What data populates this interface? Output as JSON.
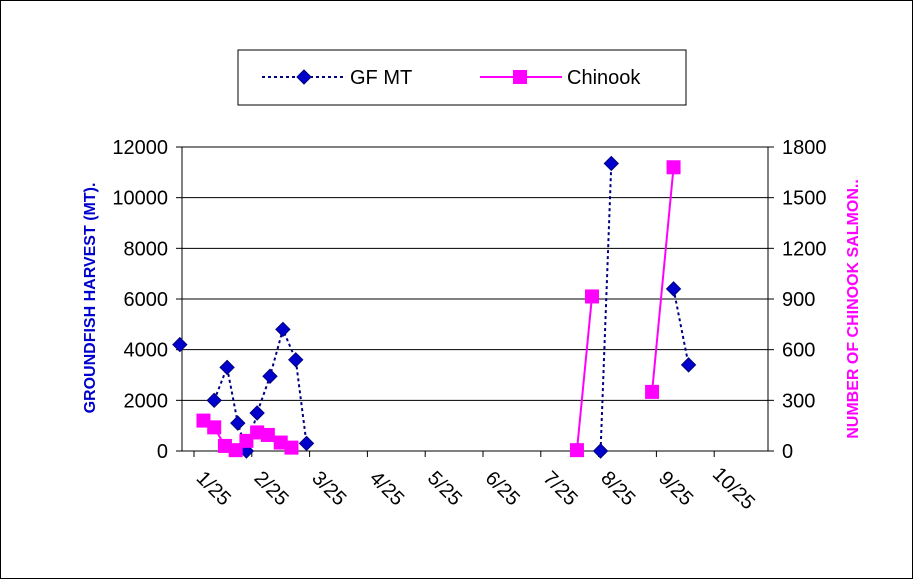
{
  "chart_data": {
    "type": "line",
    "dual_axis": true,
    "x_axis": {
      "tick_labels": [
        "1/25",
        "2/25",
        "3/25",
        "4/25",
        "5/25",
        "6/25",
        "7/25",
        "8/25",
        "9/25",
        "10/25"
      ],
      "range_days": [
        0,
        273
      ]
    },
    "y_left": {
      "label": "GROUNDFISH HARVEST (MT).",
      "ticks": [
        "0",
        "2000",
        "4000",
        "6000",
        "8000",
        "10000",
        "12000"
      ],
      "ylim": [
        0,
        12000
      ],
      "color": "#0000cc"
    },
    "y_right": {
      "label": "NUMBER OF CHINOOK SALMON..",
      "ticks": [
        "0",
        "300",
        "600",
        "900",
        "1200",
        "1500",
        "1800"
      ],
      "ylim": [
        0,
        1800
      ],
      "color": "#ff00ff"
    },
    "grid": true,
    "legend_position": "top-center",
    "series": [
      {
        "name": "GF MT",
        "axis": "left",
        "color": "#000080",
        "marker": "diamond",
        "line_style": "dotted",
        "segments": [
          [
            [
              -1,
              4200
            ]
          ],
          [
            [
              15,
              2000
            ],
            [
              21,
              3300
            ],
            [
              26,
              1100
            ],
            [
              30,
              0
            ],
            [
              35,
              1500
            ],
            [
              41,
              2950
            ],
            [
              47,
              4800
            ],
            [
              53,
              3600
            ],
            [
              58,
              300
            ]
          ],
          [
            [
              195,
              0
            ],
            [
              200,
              11350
            ]
          ],
          [
            [
              229,
              6400
            ],
            [
              236,
              3400
            ]
          ]
        ]
      },
      {
        "name": "Chinook",
        "axis": "right",
        "color": "#ff00ff",
        "marker": "square",
        "line_style": "solid",
        "segments": [
          [
            [
              10,
              180
            ],
            [
              15,
              140
            ],
            [
              20,
              30
            ],
            [
              25,
              5
            ],
            [
              30,
              60
            ],
            [
              35,
              110
            ],
            [
              40,
              95
            ],
            [
              46,
              50
            ],
            [
              51,
              20
            ]
          ],
          [
            [
              184,
              5
            ],
            [
              191,
              915
            ]
          ],
          [
            [
              219,
              350
            ],
            [
              229,
              1680
            ]
          ]
        ]
      }
    ]
  }
}
